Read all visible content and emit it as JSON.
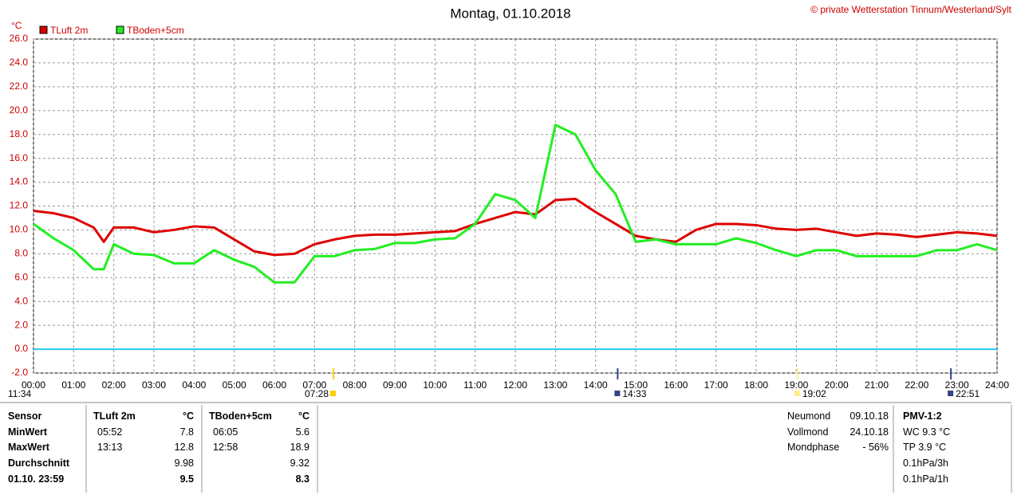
{
  "chart_data": {
    "type": "line",
    "title": "Montag, 01.10.2018",
    "source_note": "© private Wetterstation Tinnum/Westerland/Sylt",
    "y_unit": "°C",
    "x": [
      0,
      0.5,
      1,
      1.5,
      1.75,
      2,
      2.5,
      3,
      3.5,
      4,
      4.5,
      5,
      5.5,
      6,
      6.5,
      7,
      7.5,
      8,
      8.5,
      9,
      9.5,
      10,
      10.5,
      11,
      11.5,
      12,
      12.5,
      13,
      13.5,
      14,
      14.5,
      15,
      15.5,
      16,
      16.5,
      17,
      17.5,
      18,
      18.5,
      19,
      19.5,
      20,
      20.5,
      21,
      21.5,
      22,
      22.5,
      23,
      23.5,
      24
    ],
    "series": [
      {
        "name": "TLuft 2m",
        "color": "#dd0000",
        "values": [
          11.6,
          11.4,
          11.0,
          10.2,
          9.0,
          10.2,
          10.2,
          9.8,
          10.0,
          10.3,
          10.2,
          9.2,
          8.2,
          7.9,
          8.0,
          8.8,
          9.2,
          9.5,
          9.6,
          9.6,
          9.7,
          9.8,
          9.9,
          10.5,
          11.0,
          11.5,
          11.3,
          12.5,
          12.6,
          11.5,
          10.5,
          9.5,
          9.2,
          9.0,
          10.0,
          10.5,
          10.5,
          10.4,
          10.1,
          10.0,
          10.1,
          9.8,
          9.5,
          9.7,
          9.6,
          9.4,
          9.6,
          9.8,
          9.7,
          9.5
        ]
      },
      {
        "name": "TBoden+5cm",
        "color": "#22ee22",
        "values": [
          10.5,
          9.3,
          8.3,
          6.7,
          6.7,
          8.8,
          8.0,
          7.9,
          7.2,
          7.2,
          8.3,
          7.5,
          6.9,
          5.6,
          5.6,
          7.8,
          7.8,
          8.3,
          8.4,
          8.9,
          8.9,
          9.2,
          9.3,
          10.5,
          13.0,
          12.5,
          11.0,
          18.8,
          18.0,
          15.0,
          13.0,
          9.0,
          9.2,
          8.8,
          8.8,
          8.8,
          9.3,
          8.9,
          8.3,
          7.8,
          8.3,
          8.3,
          7.8,
          7.8,
          7.8,
          7.8,
          8.3,
          8.3,
          8.8,
          8.3
        ]
      }
    ],
    "xlim": [
      0,
      24
    ],
    "ylim": [
      -2,
      26
    ],
    "xticks": [
      {
        "value": 0,
        "label": "00:00"
      },
      {
        "value": 1,
        "label": "01:00"
      },
      {
        "value": 2,
        "label": "02:00"
      },
      {
        "value": 3,
        "label": "03:00"
      },
      {
        "value": 4,
        "label": "04:00"
      },
      {
        "value": 5,
        "label": "05:00"
      },
      {
        "value": 6,
        "label": "06:00"
      },
      {
        "value": 7,
        "label": "07:00"
      },
      {
        "value": 8,
        "label": "08:00"
      },
      {
        "value": 9,
        "label": "09:00"
      },
      {
        "value": 10,
        "label": "10:00"
      },
      {
        "value": 11,
        "label": "11:00"
      },
      {
        "value": 12,
        "label": "12:00"
      },
      {
        "value": 13,
        "label": "13:00"
      },
      {
        "value": 14,
        "label": "14:00"
      },
      {
        "value": 15,
        "label": "15:00"
      },
      {
        "value": 16,
        "label": "16:00"
      },
      {
        "value": 17,
        "label": "17:00"
      },
      {
        "value": 18,
        "label": "18:00"
      },
      {
        "value": 19,
        "label": "19:00"
      },
      {
        "value": 20,
        "label": "20:00"
      },
      {
        "value": 21,
        "label": "21:00"
      },
      {
        "value": 22,
        "label": "22:00"
      },
      {
        "value": 23,
        "label": "23:00"
      },
      {
        "value": 24,
        "label": "24:00"
      }
    ],
    "yticks": [
      {
        "value": 26,
        "label": "26.0"
      },
      {
        "value": 24,
        "label": "24.0"
      },
      {
        "value": 22,
        "label": "22.0"
      },
      {
        "value": 20,
        "label": "20.0"
      },
      {
        "value": 18,
        "label": "18.0"
      },
      {
        "value": 16,
        "label": "16.0"
      },
      {
        "value": 14,
        "label": "14.0"
      },
      {
        "value": 12,
        "label": "12.0"
      },
      {
        "value": 10,
        "label": "10.0"
      },
      {
        "value": 8,
        "label": "8.0"
      },
      {
        "value": 6,
        "label": "6.0"
      },
      {
        "value": 4,
        "label": "4.0"
      },
      {
        "value": 2,
        "label": "2.0"
      },
      {
        "value": 0,
        "label": "0.0"
      },
      {
        "value": -2,
        "label": "-2.0"
      }
    ],
    "grid": true,
    "zero_line_color": "#22ccee",
    "day_length_label": "11:34",
    "events": [
      {
        "x": 7.47,
        "label": "07:28",
        "color": "#ffcc00"
      },
      {
        "x": 14.55,
        "label": "14:33",
        "color": "#334488"
      },
      {
        "x": 19.03,
        "label": "19:02",
        "color": "#ffee88"
      },
      {
        "x": 22.85,
        "label": "22:51",
        "color": "#334488"
      }
    ]
  },
  "stats": {
    "rows": [
      [
        "Sensor",
        "TLuft 2m",
        "°C",
        "TBoden+5cm",
        "°C"
      ],
      [
        "MinWert",
        "05:52",
        "7.8",
        "06:05",
        "5.6"
      ],
      [
        "MaxWert",
        "13:13",
        "12.8",
        "12:58",
        "18.9"
      ],
      [
        "Durchschnitt",
        null,
        "9.98",
        null,
        "9.32"
      ],
      [
        "01.10. 23:59",
        null,
        "9.5",
        null,
        "8.3"
      ]
    ]
  },
  "moon": [
    [
      "Neumond",
      "09.10.18"
    ],
    [
      "Vollmond",
      "24.10.18"
    ],
    [
      "Mondphase",
      "- 56%"
    ]
  ],
  "pmv": [
    "PMV-1:2",
    "WC 9.3 °C",
    "TP 3.9 °C",
    "0.1hPa/3h",
    "0.1hPa/1h"
  ]
}
